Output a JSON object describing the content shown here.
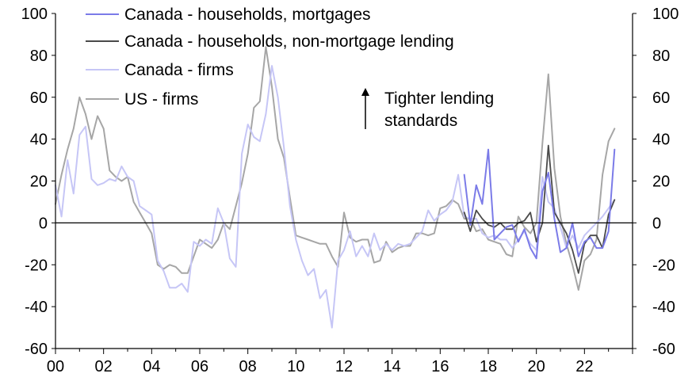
{
  "chart_data": {
    "type": "line",
    "title": "",
    "xlabel": "",
    "ylabel": "",
    "xlim": [
      2000,
      2024
    ],
    "ylim": [
      -60,
      100
    ],
    "y2lim": [
      -60,
      100
    ],
    "x_ticks": [
      "00",
      "02",
      "04",
      "06",
      "08",
      "10",
      "12",
      "14",
      "16",
      "18",
      "20",
      "22"
    ],
    "y_ticks": [
      "100",
      "80",
      "60",
      "40",
      "20",
      "0",
      "-20",
      "-40",
      "-60"
    ],
    "y2_ticks": [
      "100",
      "80",
      "60",
      "40",
      "20",
      "0",
      "-20",
      "-40",
      "-60"
    ],
    "grid": false,
    "zero_line": true,
    "legend_position": "top-left",
    "annotation": {
      "line1": "Tighter lending",
      "line2": "standards",
      "arrow": "up"
    },
    "series": [
      {
        "name": "Canada - households, mortgages",
        "color": "#7b7be8",
        "x": [
          2017.0,
          2017.25,
          2017.5,
          2017.75,
          2018.0,
          2018.25,
          2018.5,
          2018.75,
          2019.0,
          2019.25,
          2019.5,
          2019.75,
          2020.0,
          2020.25,
          2020.5,
          2020.75,
          2021.0,
          2021.25,
          2021.5,
          2021.75,
          2022.0,
          2022.25,
          2022.5,
          2022.75,
          2023.0,
          2023.25
        ],
        "values": [
          23,
          -1,
          18,
          9,
          35,
          -8,
          -5,
          -2,
          -1,
          -9,
          -3,
          -12,
          -17,
          15,
          24,
          2,
          -14,
          -12,
          0,
          -16,
          -9,
          -7,
          -12,
          -12,
          -4,
          35
        ]
      },
      {
        "name": "Canada - households, non-mortgage lending",
        "color": "#4a4a4a",
        "x": [
          2017.0,
          2017.25,
          2017.5,
          2017.75,
          2018.0,
          2018.25,
          2018.5,
          2018.75,
          2019.0,
          2019.25,
          2019.5,
          2019.75,
          2020.0,
          2020.25,
          2020.5,
          2020.75,
          2021.0,
          2021.25,
          2021.5,
          2021.75,
          2022.0,
          2022.25,
          2022.5,
          2022.75,
          2023.0,
          2023.25
        ],
        "values": [
          5,
          -4,
          6,
          2,
          -1,
          -2,
          0,
          -3,
          -3,
          0,
          1,
          5,
          -9,
          0,
          37,
          5,
          0,
          -5,
          -13,
          -24,
          -10,
          -6,
          -6,
          -12,
          4,
          11
        ]
      },
      {
        "name": "Canada - firms",
        "color": "#c6c6f6",
        "x": [
          2000.0,
          2000.25,
          2000.5,
          2000.75,
          2001.0,
          2001.25,
          2001.5,
          2001.75,
          2002.0,
          2002.25,
          2002.5,
          2002.75,
          2003.0,
          2003.25,
          2003.5,
          2003.75,
          2004.0,
          2004.25,
          2004.5,
          2004.75,
          2005.0,
          2005.25,
          2005.5,
          2005.75,
          2006.0,
          2006.25,
          2006.5,
          2006.75,
          2007.0,
          2007.25,
          2007.5,
          2007.75,
          2008.0,
          2008.25,
          2008.5,
          2008.75,
          2009.0,
          2009.25,
          2009.5,
          2009.75,
          2010.0,
          2010.25,
          2010.5,
          2010.75,
          2011.0,
          2011.25,
          2011.5,
          2011.75,
          2012.0,
          2012.25,
          2012.5,
          2012.75,
          2013.0,
          2013.25,
          2013.5,
          2013.75,
          2014.0,
          2014.25,
          2014.5,
          2014.75,
          2015.0,
          2015.25,
          2015.5,
          2015.75,
          2016.0,
          2016.25,
          2016.5,
          2016.75,
          2017.0,
          2017.25,
          2017.5,
          2017.75,
          2018.0,
          2018.25,
          2018.5,
          2018.75,
          2019.0,
          2019.25,
          2019.5,
          2019.75,
          2020.0,
          2020.25,
          2020.5,
          2020.75,
          2021.0,
          2021.25,
          2021.5,
          2021.75,
          2022.0,
          2022.25,
          2022.5,
          2022.75,
          2023.0,
          2023.25
        ],
        "values": [
          18,
          3,
          30,
          14,
          42,
          46,
          21,
          18,
          19,
          21,
          20,
          27,
          22,
          20,
          8,
          6,
          4,
          -18,
          -23,
          -31,
          -31,
          -29,
          -33,
          -9,
          -11,
          -8,
          -10,
          7,
          0,
          -17,
          -21,
          33,
          47,
          41,
          39,
          52,
          75,
          60,
          36,
          8,
          -8,
          -18,
          -25,
          -22,
          -36,
          -32,
          -50,
          -18,
          -13,
          -4,
          -16,
          -11,
          -16,
          -5,
          -13,
          -10,
          -13,
          -10,
          -11,
          -10,
          -7,
          -4,
          6,
          1,
          4,
          6,
          10,
          23,
          3,
          2,
          2,
          -5,
          -7,
          -6,
          -8,
          -8,
          -12,
          -8,
          -4,
          -10,
          -13,
          22,
          10,
          7,
          -2,
          -12,
          -6,
          -12,
          -6,
          -3,
          0,
          3,
          7,
          11
        ]
      },
      {
        "name": "US - firms",
        "color": "#a6a6a6",
        "x": [
          2000.0,
          2000.25,
          2000.5,
          2000.75,
          2001.0,
          2001.25,
          2001.5,
          2001.75,
          2002.0,
          2002.25,
          2002.5,
          2002.75,
          2003.0,
          2003.25,
          2003.5,
          2003.75,
          2004.0,
          2004.25,
          2004.5,
          2004.75,
          2005.0,
          2005.25,
          2005.5,
          2005.75,
          2006.0,
          2006.25,
          2006.5,
          2006.75,
          2007.0,
          2007.25,
          2007.5,
          2007.75,
          2008.0,
          2008.25,
          2008.5,
          2008.75,
          2009.0,
          2009.25,
          2009.5,
          2009.75,
          2010.0,
          2010.25,
          2010.5,
          2010.75,
          2011.0,
          2011.25,
          2011.5,
          2011.75,
          2012.0,
          2012.25,
          2012.5,
          2012.75,
          2013.0,
          2013.25,
          2013.5,
          2013.75,
          2014.0,
          2014.25,
          2014.5,
          2014.75,
          2015.0,
          2015.25,
          2015.5,
          2015.75,
          2016.0,
          2016.25,
          2016.5,
          2016.75,
          2017.0,
          2017.25,
          2017.5,
          2017.75,
          2018.0,
          2018.25,
          2018.5,
          2018.75,
          2019.0,
          2019.25,
          2019.5,
          2019.75,
          2020.0,
          2020.25,
          2020.5,
          2020.75,
          2021.0,
          2021.25,
          2021.5,
          2021.75,
          2022.0,
          2022.25,
          2022.5,
          2022.75,
          2023.0,
          2023.25
        ],
        "values": [
          9,
          23,
          35,
          45,
          60,
          52,
          40,
          51,
          45,
          25,
          22,
          20,
          22,
          10,
          5,
          0,
          -5,
          -20,
          -22,
          -20,
          -21,
          -24,
          -24,
          -16,
          -8,
          -10,
          -12,
          -8,
          0,
          -3,
          8,
          19,
          33,
          55,
          58,
          84,
          65,
          40,
          31,
          12,
          -6,
          -7,
          -8,
          -9,
          -10,
          -10,
          -16,
          -21,
          5,
          -7,
          -9,
          -8,
          -8,
          -19,
          -18,
          -9,
          -14,
          -12,
          -11,
          -11,
          -5,
          -5,
          -6,
          -5,
          7,
          8,
          11,
          9,
          2,
          2,
          -4,
          -3,
          -8,
          -9,
          -10,
          -15,
          -16,
          3,
          -2,
          -5,
          0,
          38,
          71,
          26,
          3,
          -10,
          -20,
          -32,
          -18,
          -15,
          -8,
          23,
          39,
          45
        ]
      }
    ]
  }
}
